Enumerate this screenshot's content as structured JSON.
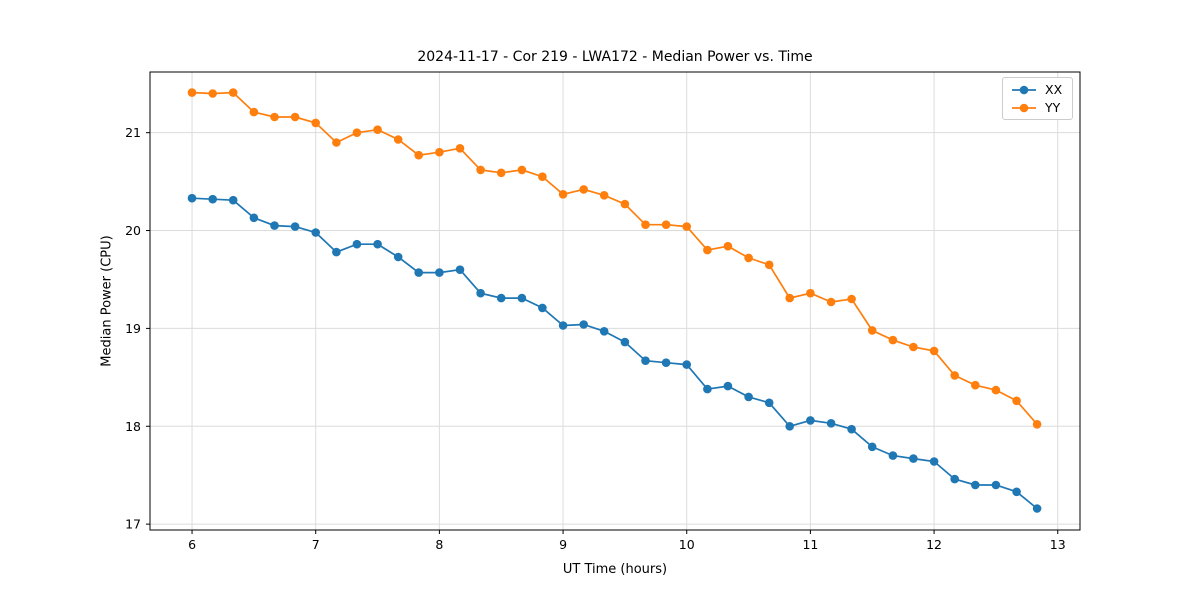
{
  "chart_data": {
    "type": "line",
    "title": "2024-11-17 - Cor 219 - LWA172 - Median Power vs. Time",
    "xlabel": "UT Time (hours)",
    "ylabel": "Median Power (CPU)",
    "xlim": [
      5.66,
      13.18
    ],
    "ylim": [
      16.94,
      21.62
    ],
    "xticks": [
      6,
      7,
      8,
      9,
      10,
      11,
      12,
      13
    ],
    "yticks": [
      17,
      18,
      19,
      20,
      21
    ],
    "grid": true,
    "grid_color": "#dcdcdc",
    "legend_position": "upper right",
    "x": [
      6.0,
      6.167,
      6.333,
      6.5,
      6.667,
      6.833,
      7.0,
      7.167,
      7.333,
      7.5,
      7.667,
      7.833,
      8.0,
      8.167,
      8.333,
      8.5,
      8.667,
      8.833,
      9.0,
      9.167,
      9.333,
      9.5,
      9.667,
      9.833,
      10.0,
      10.167,
      10.333,
      10.5,
      10.667,
      10.833,
      11.0,
      11.167,
      11.333,
      11.5,
      11.667,
      11.833,
      12.0,
      12.167,
      12.333,
      12.5,
      12.667,
      12.833
    ],
    "series": [
      {
        "name": "XX",
        "color": "#1f77b4",
        "values": [
          20.33,
          20.32,
          20.31,
          20.13,
          20.05,
          20.04,
          19.98,
          19.78,
          19.86,
          19.86,
          19.73,
          19.57,
          19.57,
          19.6,
          19.36,
          19.31,
          19.31,
          19.21,
          19.03,
          19.04,
          18.97,
          18.86,
          18.67,
          18.65,
          18.63,
          18.38,
          18.41,
          18.3,
          18.24,
          18.0,
          18.06,
          18.03,
          17.97,
          17.79,
          17.7,
          17.67,
          17.64,
          17.46,
          17.4,
          17.4,
          17.33,
          17.16
        ]
      },
      {
        "name": "YY",
        "color": "#ff7f0e",
        "values": [
          21.41,
          21.4,
          21.41,
          21.21,
          21.16,
          21.16,
          21.1,
          20.9,
          21.0,
          21.03,
          20.93,
          20.77,
          20.8,
          20.84,
          20.62,
          20.59,
          20.62,
          20.55,
          20.37,
          20.42,
          20.36,
          20.27,
          20.06,
          20.06,
          20.04,
          19.8,
          19.84,
          19.72,
          19.65,
          19.31,
          19.36,
          19.27,
          19.3,
          18.98,
          18.88,
          18.81,
          18.77,
          18.52,
          18.42,
          18.37,
          18.26,
          18.02
        ]
      }
    ]
  }
}
